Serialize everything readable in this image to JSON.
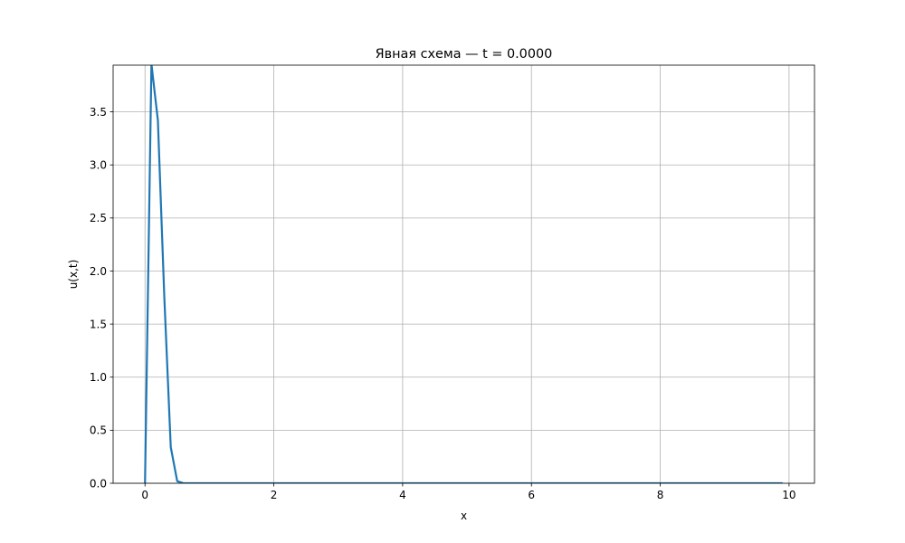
{
  "chart_data": {
    "type": "line",
    "title": "Явная схема — t = 0.0000",
    "xlabel": "x",
    "ylabel": "u(x,t)",
    "xlim": [
      -0.495,
      10.395
    ],
    "ylim": [
      0,
      3.94
    ],
    "xticks": [
      0,
      2,
      4,
      6,
      8,
      10
    ],
    "xtick_labels": [
      "0",
      "2",
      "4",
      "6",
      "8",
      "10"
    ],
    "yticks": [
      0.0,
      0.5,
      1.0,
      1.5,
      2.0,
      2.5,
      3.0,
      3.5
    ],
    "ytick_labels": [
      "0.0",
      "0.5",
      "1.0",
      "1.5",
      "2.0",
      "2.5",
      "3.0",
      "3.5"
    ],
    "grid": true,
    "series": [
      {
        "color": "#1f77b4",
        "x": [
          0.0,
          0.1,
          0.2,
          0.3,
          0.4,
          0.5,
          0.6,
          0.7,
          0.8,
          0.9,
          1.0,
          1.5,
          2.0,
          2.5,
          3.0,
          3.5,
          4.0,
          4.5,
          5.0,
          5.5,
          6.0,
          6.5,
          7.0,
          7.5,
          8.0,
          8.5,
          9.0,
          9.5,
          9.9
        ],
        "y": [
          0.0,
          3.95,
          3.42,
          1.75,
          0.34,
          0.02,
          0.0,
          0.0,
          0.0,
          0.0,
          0.0,
          0.0,
          0.0,
          0.0,
          0.0,
          0.0,
          0.0,
          0.0,
          0.0,
          0.0,
          0.0,
          0.0,
          0.0,
          0.0,
          0.0,
          0.0,
          0.0,
          0.0,
          0.0
        ]
      }
    ]
  }
}
